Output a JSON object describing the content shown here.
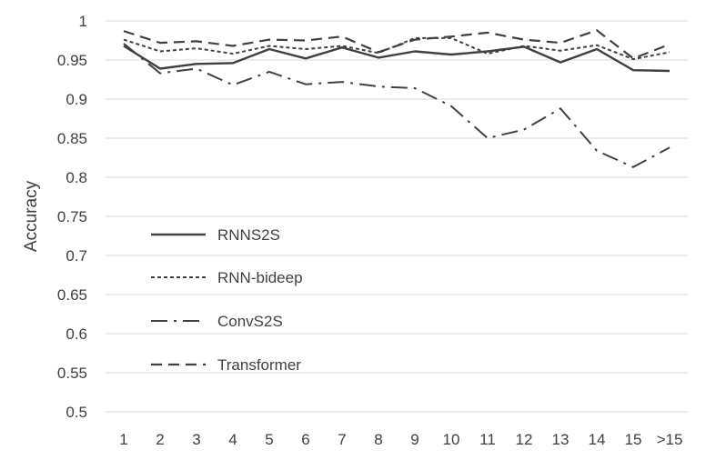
{
  "chart_data": {
    "type": "line",
    "title": "",
    "xlabel": "",
    "ylabel": "Accuracy",
    "categories": [
      "1",
      "2",
      "3",
      "4",
      "5",
      "6",
      "7",
      "8",
      "9",
      "10",
      "11",
      "12",
      "13",
      "14",
      "15",
      ">15"
    ],
    "ylim": [
      0.5,
      1.0
    ],
    "yticks": [
      "0.5",
      "0.55",
      "0.6",
      "0.65",
      "0.7",
      "0.75",
      "0.8",
      "0.85",
      "0.9",
      "0.95",
      "1"
    ],
    "grid": "horizontal",
    "legend_position": "left-inside",
    "series": [
      {
        "name": "RNNS2S",
        "style": "solid",
        "values": [
          0.968,
          0.939,
          0.945,
          0.946,
          0.964,
          0.952,
          0.966,
          0.953,
          0.961,
          0.957,
          0.961,
          0.967,
          0.947,
          0.964,
          0.937,
          0.936
        ]
      },
      {
        "name": "RNN-bideep",
        "style": "dotted",
        "values": [
          0.976,
          0.961,
          0.965,
          0.958,
          0.968,
          0.964,
          0.968,
          0.959,
          0.978,
          0.978,
          0.958,
          0.968,
          0.962,
          0.969,
          0.951,
          0.96
        ]
      },
      {
        "name": "ConvS2S",
        "style": "dash-dot",
        "values": [
          0.971,
          0.933,
          0.939,
          0.918,
          0.935,
          0.919,
          0.922,
          0.916,
          0.914,
          0.891,
          0.85,
          0.861,
          0.888,
          0.834,
          0.813,
          0.838
        ]
      },
      {
        "name": "Transformer",
        "style": "dashed",
        "values": [
          0.987,
          0.972,
          0.974,
          0.968,
          0.976,
          0.975,
          0.98,
          0.96,
          0.976,
          0.98,
          0.985,
          0.976,
          0.972,
          0.988,
          0.952,
          0.97
        ]
      }
    ],
    "colors": {
      "line": "#404040",
      "grid": "#d9d9d9",
      "text": "#404040"
    }
  }
}
